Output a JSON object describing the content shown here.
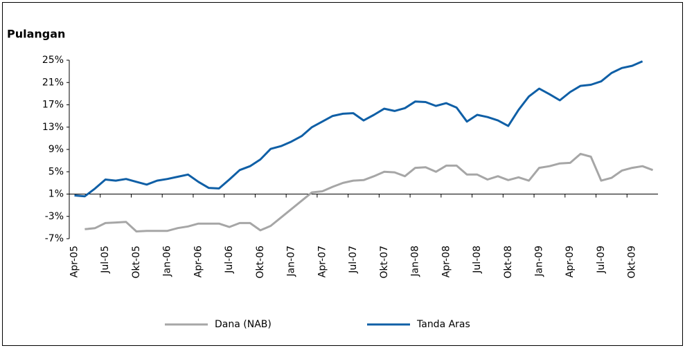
{
  "chart_data": {
    "type": "line",
    "title": "Pulangan",
    "categories": [
      "Apr-05",
      null,
      null,
      "Jul-05",
      null,
      null,
      "Okt-05",
      null,
      null,
      "Jan-06",
      null,
      null,
      "Apr-06",
      null,
      null,
      "Jul-06",
      null,
      null,
      "Okt-06",
      null,
      null,
      "Jan-07",
      null,
      null,
      "Apr-07",
      null,
      null,
      "Jul-07",
      null,
      null,
      "Okt-07",
      null,
      null,
      "Jan-08",
      null,
      null,
      "Apr-08",
      null,
      null,
      "Jul-08",
      null,
      null,
      "Okt-08",
      null,
      null,
      "Jan-09",
      null,
      null,
      "Apr-09",
      null,
      null,
      "Jul-09",
      null,
      null,
      "Okt-09",
      null,
      null
    ],
    "series": [
      {
        "name": "Dana (NAB)",
        "color": "#a6a6a6",
        "values": [
          null,
          -5.3,
          -5.1,
          -4.2,
          -4.1,
          -4.0,
          -5.7,
          -5.6,
          -5.6,
          -5.6,
          -5.1,
          -4.8,
          -4.3,
          -4.3,
          -4.3,
          -4.9,
          -4.2,
          -4.2,
          -5.5,
          -4.7,
          -3.2,
          -1.7,
          -0.2,
          1.3,
          1.5,
          2.3,
          3.0,
          3.4,
          3.5,
          4.2,
          5.0,
          4.9,
          4.2,
          5.7,
          5.8,
          5.0,
          6.1,
          6.1,
          4.5,
          4.5,
          3.6,
          4.2,
          3.5,
          4.0,
          3.4,
          5.7,
          6.0,
          6.5,
          6.6,
          8.2,
          7.7,
          3.4,
          3.9,
          5.2,
          5.7,
          6.0,
          5.3
        ]
      },
      {
        "name": "Tanda Aras",
        "color": "#0f5fa6",
        "values": [
          0.75,
          0.6,
          2.0,
          3.6,
          3.4,
          3.7,
          3.2,
          2.7,
          3.4,
          3.7,
          4.1,
          4.5,
          3.2,
          2.1,
          2.0,
          3.6,
          5.3,
          6.0,
          7.2,
          9.1,
          9.6,
          10.4,
          11.4,
          13.0,
          14.0,
          15.0,
          15.4,
          15.5,
          14.2,
          15.2,
          16.3,
          15.9,
          16.4,
          17.6,
          17.5,
          16.8,
          17.3,
          16.5,
          14.0,
          15.2,
          14.8,
          14.2,
          13.2,
          16.1,
          18.5,
          19.9,
          18.9,
          17.8,
          19.3,
          20.4,
          20.6,
          21.2,
          22.7,
          23.6,
          24.0,
          24.8,
          null
        ]
      }
    ],
    "ylim": [
      -7,
      25
    ],
    "yticks": [
      {
        "value": -7,
        "label": "-7%"
      },
      {
        "value": -3,
        "label": "-3%"
      },
      {
        "value": 1,
        "label": "1%"
      },
      {
        "value": 5,
        "label": "5%"
      },
      {
        "value": 9,
        "label": "9%"
      },
      {
        "value": 13,
        "label": "13%"
      },
      {
        "value": 17,
        "label": "17%"
      },
      {
        "value": 21,
        "label": "21%"
      },
      {
        "value": 25,
        "label": "25%"
      }
    ],
    "legend": "bottom"
  }
}
